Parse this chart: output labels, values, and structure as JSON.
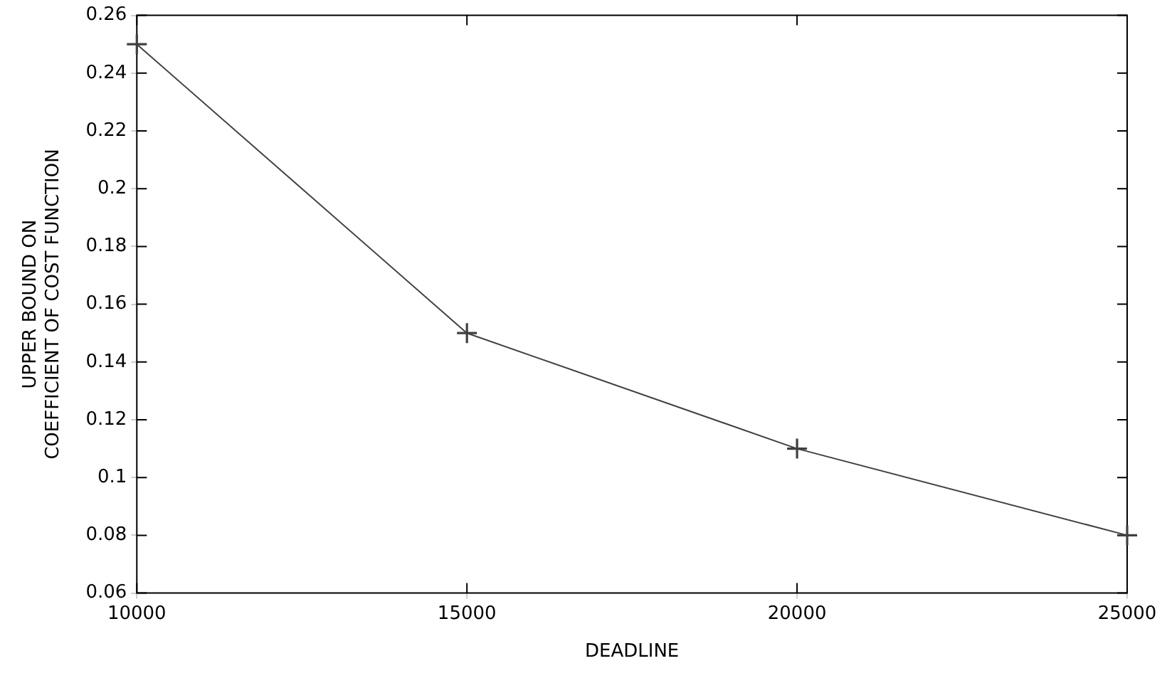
{
  "chart_data": {
    "type": "line",
    "xlabel": "DEADLINE",
    "ylabel": "UPPER BOUND ON\nCOEFFICIENT OF COST FUNCTION",
    "x": [
      10000,
      15000,
      20000,
      25000
    ],
    "series": [
      {
        "color": "#404040",
        "values": [
          0.25,
          0.15,
          0.11,
          0.08
        ]
      }
    ],
    "xlim": [
      10000,
      25000
    ],
    "xticks": [
      10000,
      15000,
      20000,
      25000
    ],
    "ylim": [
      0.06,
      0.26
    ],
    "yticks": [
      0.06,
      0.08,
      0.1,
      0.12,
      0.14,
      0.16,
      0.18,
      0.2,
      0.22,
      0.24,
      0.26
    ],
    "grid": false,
    "legend": false,
    "marker": "cross",
    "line_style": "solid"
  }
}
